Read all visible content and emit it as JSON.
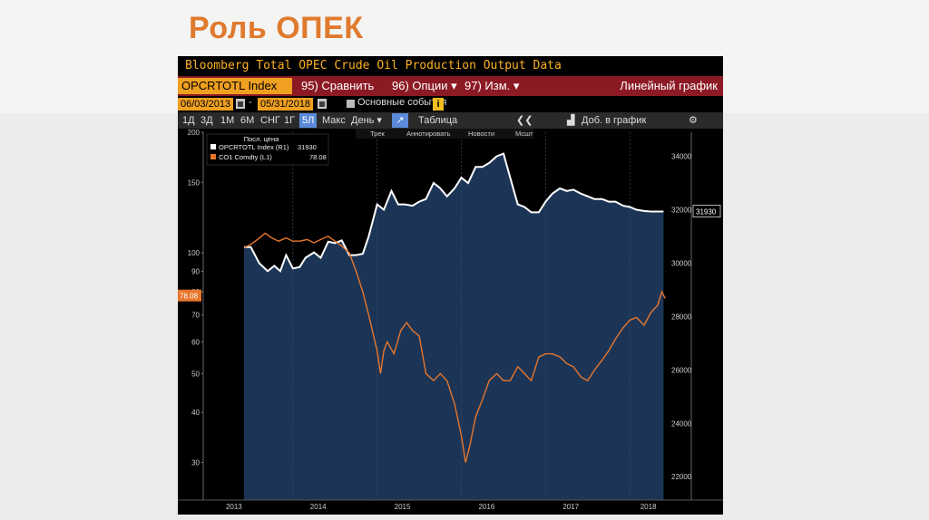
{
  "slide": {
    "title": "Роль ОПЕК"
  },
  "terminal": {
    "title": "Bloomberg Total OPEC Crude Oil Production Output Data",
    "ticker": "OPCRTOTL Index",
    "buttons": {
      "compare": "95) Сравнить",
      "options": "96) Опции ▾",
      "edit": "97) Изм. ▾"
    },
    "chart_mode": "Линейный график",
    "date_from": "06/03/2013",
    "date_separator": "-",
    "date_to": "05/31/2018",
    "events_label": "Основные события",
    "info_label": "i",
    "periods": [
      "1Д",
      "3Д",
      "1М",
      "6М",
      "СНГ",
      "1Г",
      "5Л",
      "Макс"
    ],
    "active_period": "5Л",
    "interval_label": "День ▾",
    "table_label": "Таблица",
    "collapse_label": "❮❮",
    "add_to_chart_label": "Доб. в график",
    "settings_icon": "gear-icon",
    "tools": [
      "Трек",
      "Аннотировать",
      "Новости",
      "Мсшт"
    ]
  },
  "colors": {
    "background": "#000000",
    "plot_fill": "#1c3556",
    "opec_line": "#ffffff",
    "brent_line": "#e8762c",
    "title_color": "#e07a2e",
    "accent_bar": "#8c1a24",
    "orange_field": "#f0a020"
  },
  "chart_data": {
    "type": "line",
    "title": "",
    "xlabel": "",
    "ylabel_left": "",
    "ylabel_right": "",
    "x_ticks": [
      "2013",
      "2014",
      "2015",
      "2016",
      "2017",
      "2018"
    ],
    "x_range": [
      2013.0,
      2018.45
    ],
    "y_left_scale": "log",
    "y_left_range": [
      26,
      200
    ],
    "y_left_ticks": [
      "200",
      "150",
      "100",
      "90",
      "80",
      "70",
      "60",
      "50",
      "40",
      "30"
    ],
    "y_right_range": [
      21600,
      34900
    ],
    "y_right_ticks": [
      "34000",
      "32000",
      "30000",
      "28000",
      "26000",
      "24000",
      "22000"
    ],
    "legend": {
      "header": "Посл. цена",
      "placement": "top-left",
      "entries": [
        {
          "label": "OPCRTOTL Index  (R1)",
          "value": "31930"
        },
        {
          "label": "CO1 Comdty  (L1)",
          "value": "78.08"
        }
      ]
    },
    "last_value_badges": {
      "right": "31930",
      "left": "78.08"
    },
    "grid": "vertical",
    "series": [
      {
        "name": "OPCRTOTL Index",
        "axis": "right",
        "x": [
          2013.42,
          2013.5,
          2013.6,
          2013.7,
          2013.78,
          2013.85,
          2013.92,
          2014.0,
          2014.08,
          2014.15,
          2014.25,
          2014.33,
          2014.42,
          2014.5,
          2014.58,
          2014.67,
          2014.75,
          2014.83,
          2014.9,
          2015.0,
          2015.08,
          2015.17,
          2015.25,
          2015.33,
          2015.42,
          2015.5,
          2015.58,
          2015.67,
          2015.75,
          2015.83,
          2015.92,
          2016.0,
          2016.08,
          2016.17,
          2016.25,
          2016.33,
          2016.42,
          2016.5,
          2016.58,
          2016.67,
          2016.75,
          2016.83,
          2016.92,
          2017.0,
          2017.08,
          2017.17,
          2017.25,
          2017.33,
          2017.42,
          2017.5,
          2017.58,
          2017.67,
          2017.75,
          2017.83,
          2017.92,
          2018.0,
          2018.08,
          2018.17,
          2018.25,
          2018.33,
          2018.4
        ],
        "values": [
          30600,
          30600,
          30000,
          29700,
          29900,
          29700,
          30300,
          29800,
          29850,
          30200,
          30400,
          30200,
          30800,
          30750,
          30850,
          30300,
          30300,
          30350,
          31000,
          32200,
          32000,
          32700,
          32200,
          32200,
          32150,
          32300,
          32400,
          33000,
          32800,
          32500,
          32800,
          33200,
          33000,
          33600,
          33600,
          33750,
          34000,
          34100,
          33200,
          32200,
          32100,
          31900,
          31900,
          32300,
          32600,
          32800,
          32700,
          32750,
          32600,
          32500,
          32400,
          32400,
          32300,
          32300,
          32150,
          32100,
          32000,
          31950,
          31930,
          31930,
          31930
        ]
      },
      {
        "name": "CO1 Comdty",
        "axis": "left",
        "x": [
          2013.42,
          2013.5,
          2013.58,
          2013.67,
          2013.75,
          2013.83,
          2013.92,
          2014.0,
          2014.08,
          2014.17,
          2014.25,
          2014.33,
          2014.42,
          2014.5,
          2014.58,
          2014.67,
          2014.75,
          2014.83,
          2014.9,
          2015.0,
          2015.04,
          2015.08,
          2015.12,
          2015.2,
          2015.28,
          2015.35,
          2015.42,
          2015.5,
          2015.58,
          2015.67,
          2015.75,
          2015.83,
          2015.92,
          2016.0,
          2016.05,
          2016.1,
          2016.17,
          2016.25,
          2016.33,
          2016.42,
          2016.5,
          2016.58,
          2016.67,
          2016.75,
          2016.83,
          2016.92,
          2017.0,
          2017.08,
          2017.17,
          2017.25,
          2017.33,
          2017.42,
          2017.5,
          2017.58,
          2017.67,
          2017.75,
          2017.83,
          2017.92,
          2018.0,
          2018.08,
          2018.17,
          2018.25,
          2018.33,
          2018.38,
          2018.42
        ],
        "values": [
          103,
          105,
          108,
          112,
          109,
          107,
          109,
          107,
          107,
          108,
          106,
          108,
          110,
          107,
          104,
          100,
          90,
          80,
          70,
          57,
          50,
          57,
          60,
          56,
          64,
          67,
          64,
          62,
          50,
          48,
          50,
          48,
          42,
          35,
          30,
          33,
          39,
          43,
          48,
          50,
          48,
          48,
          52,
          50,
          48,
          55,
          56,
          56,
          55,
          53,
          52,
          49,
          48,
          51,
          54,
          57,
          61,
          65,
          68,
          69,
          66,
          71,
          74,
          80,
          77
        ]
      }
    ]
  }
}
